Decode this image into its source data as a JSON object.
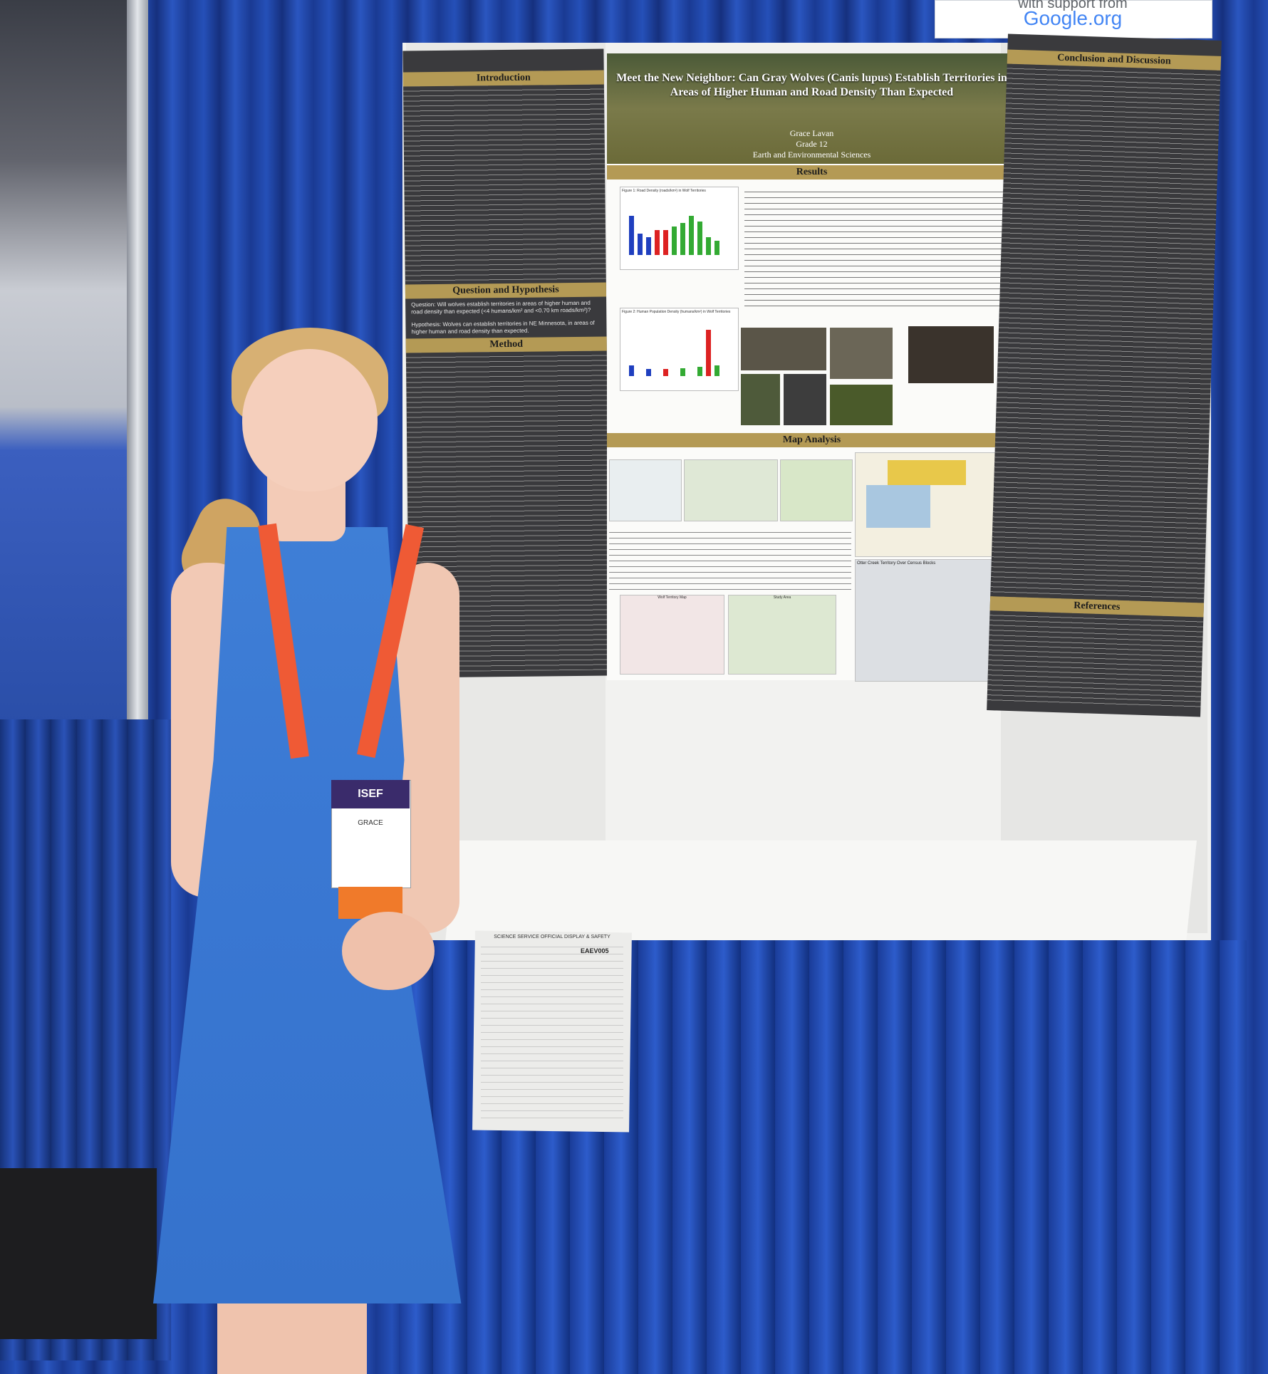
{
  "scene": {
    "description_tag": "science-fair-poster-presentation"
  },
  "sponsor_sign": {
    "line1": "with support from",
    "brand": "Google.org"
  },
  "poster": {
    "title": "Meet the New Neighbor: Can Gray Wolves (Canis lupus) Establish Territories in Areas of Higher Human and Road Density Than Expected",
    "author": "Grace Lavan",
    "grade": "Grade 12",
    "category": "Earth and Environmental Sciences",
    "sections": {
      "introduction": "Introduction",
      "question": "Question and Hypothesis",
      "method": "Method",
      "results": "Results",
      "map_analysis": "Map Analysis",
      "conclusion": "Conclusion and Discussion",
      "references": "References"
    },
    "question_text": "Question: Will wolves establish territories in areas of higher human and road density than expected (<4 humans/km² and <0.70 km roads/km²)?",
    "hypothesis_text": "Hypothesis: Wolves can establish territories in NE Minnesota, in areas of higher human and road density than expected.",
    "map_titles": {
      "otter_creek": "Otter Creek Territory Over Census Blocks",
      "study_area": "Study Area",
      "wolf_territory_map": "Wolf Territory Map"
    },
    "figure_titles": {
      "fig1": "Figure 1: Road Density (roads/km²) in Wolf Territories",
      "fig2": "Figure 2: Human Population Density (humans/km²) in Wolf Territories"
    }
  },
  "badge": {
    "event": "ISEF",
    "name": "GRACE"
  },
  "form": {
    "header": "SCIENCE SERVICE OFFICIAL DISPLAY & SAFETY",
    "id": "EAEV005"
  },
  "colors": {
    "curtain": "#1d3f96",
    "poster_accent": "#b49a55",
    "poster_dark": "#3a3a3d",
    "dress": "#3a78d3",
    "lanyard": "#ef5a35"
  }
}
